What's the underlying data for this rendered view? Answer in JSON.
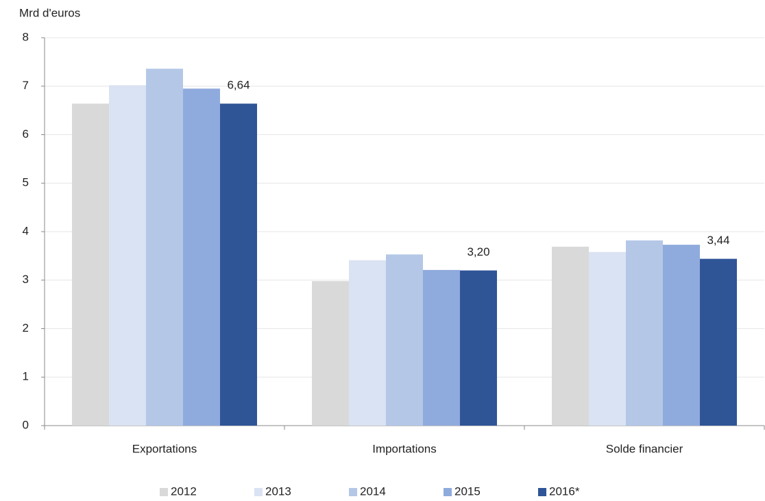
{
  "chart_data": {
    "type": "bar",
    "y_unit_label": "Mrd d'euros",
    "categories": [
      "Exportations",
      "Importations",
      "Solde financier"
    ],
    "series": [
      {
        "name": "2012",
        "color": "#d9d9d9",
        "values": [
          6.64,
          2.98,
          3.69
        ]
      },
      {
        "name": "2013",
        "color": "#dae3f3",
        "values": [
          7.02,
          3.41,
          3.58
        ]
      },
      {
        "name": "2014",
        "color": "#b4c7e7",
        "values": [
          7.36,
          3.53,
          3.82
        ]
      },
      {
        "name": "2015",
        "color": "#8faadc",
        "values": [
          6.95,
          3.21,
          3.73
        ]
      },
      {
        "name": "2016*",
        "color": "#2f5597",
        "values": [
          6.64,
          3.2,
          3.44
        ],
        "value_labels": [
          "6,64",
          "3,20",
          "3,44"
        ]
      }
    ],
    "ylim": [
      0,
      8
    ],
    "yticks": [
      0,
      1,
      2,
      3,
      4,
      5,
      6,
      7,
      8
    ],
    "grid": true,
    "legend": "bottom"
  }
}
